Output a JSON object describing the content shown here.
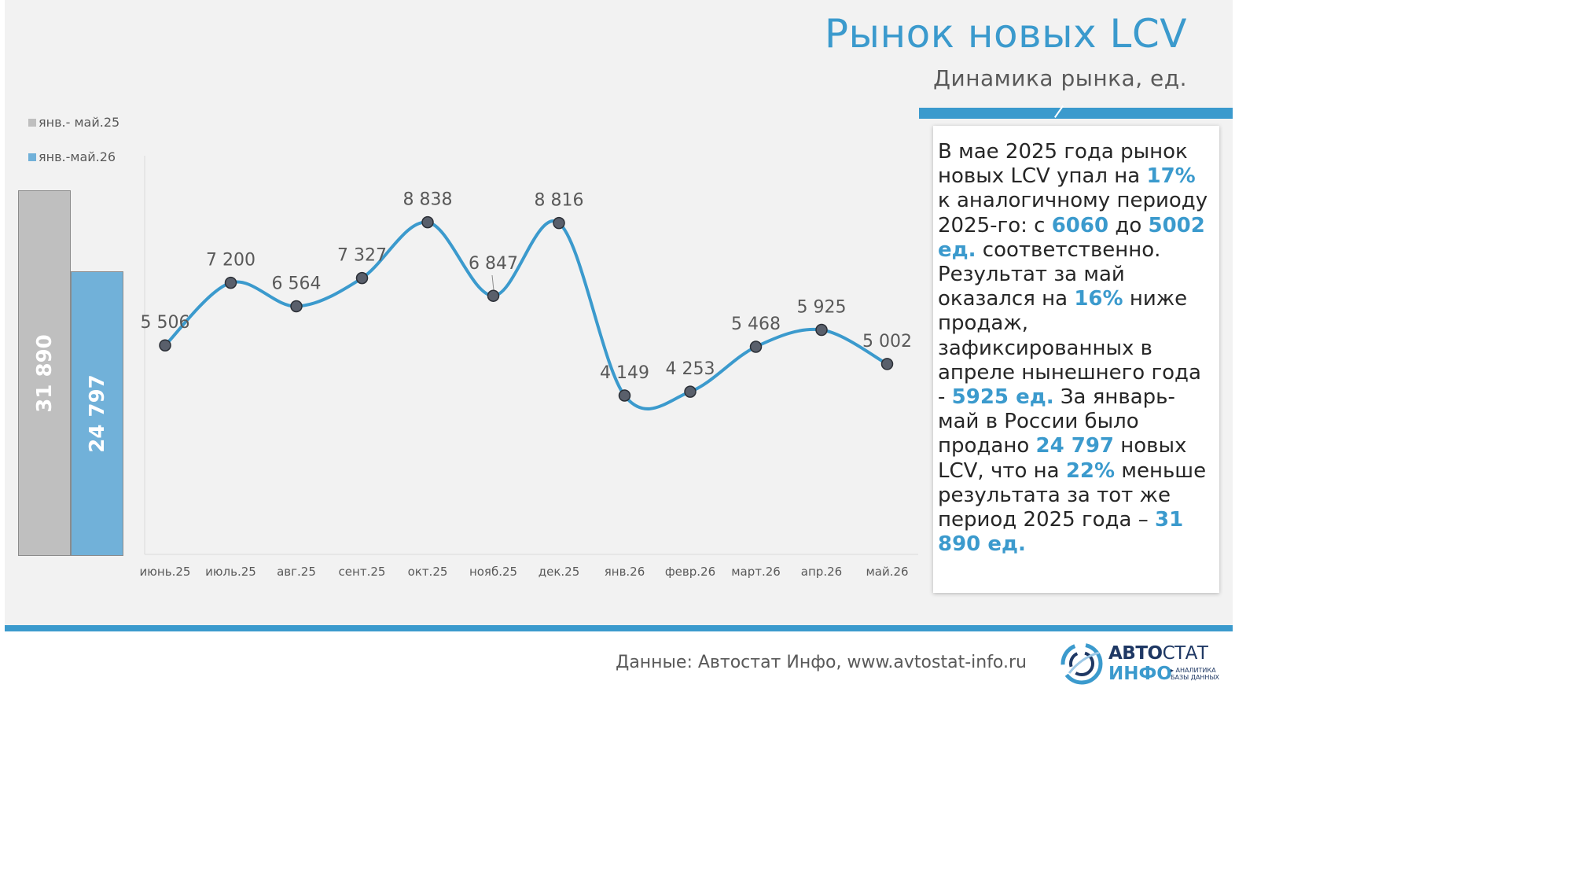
{
  "header": {
    "title": "Рынок новых LCV",
    "subtitle": "Динамика рынка, ед."
  },
  "legend": [
    {
      "label": "янв.- май.25",
      "color": "#bfbfbf"
    },
    {
      "label": "янв.-май.26",
      "color": "#71b1d9"
    }
  ],
  "summary_bars": [
    {
      "label": "31 890",
      "value": 31890,
      "color": "#bfbfbf"
    },
    {
      "label": "24 797",
      "value": 24797,
      "color": "#71b1d9"
    }
  ],
  "chart_data": {
    "type": "line",
    "categories": [
      "июнь.25",
      "июль.25",
      "авг.25",
      "сент.25",
      "окт.25",
      "нояб.25",
      "дек.25",
      "янв.26",
      "февр.26",
      "март.26",
      "апр.26",
      "май.26"
    ],
    "values": [
      5506,
      7200,
      6564,
      7327,
      8838,
      6847,
      8816,
      4149,
      4253,
      5468,
      5925,
      5002
    ],
    "data_labels": [
      "5 506",
      "7 200",
      "6 564",
      "7 327",
      "8 838",
      "6 847",
      "8 816",
      "4 149",
      "4 253",
      "5 468",
      "5 925",
      "5 002"
    ],
    "title": "",
    "xlabel": "",
    "ylabel": "",
    "grid": false,
    "line_color": "#3b9acd",
    "marker_color": "#595f6b"
  },
  "textbox": {
    "s1": "В мае 2025 года рынок новых LCV упал на ",
    "v1": "17%",
    "s2": " к аналогичному периоду 2025-го: с ",
    "v2": "6060",
    "s3": " до ",
    "v3": "5002 ед.",
    "s4": " соответственно. Результат за май оказался на ",
    "v4": "16%",
    "s5": " ниже продаж, зафиксированных в апреле нынешнего года - ",
    "v5": "5925 ед.",
    "s6": " За январь-май в России было продано ",
    "v6": "24 797",
    "s7": " новых LCV, что на ",
    "v7": "22%",
    "s8": " меньше результата за тот же период 2025 года – ",
    "v8": "31 890 ед."
  },
  "footer": {
    "source": "Данные: Автостат Инфо, www.avtostat-info.ru",
    "logo_a": "АВТО",
    "logo_b": "СТАТ",
    "logo_c": "ИНФО",
    "logo_tag1": "▸ АНАЛИТИКА",
    "logo_tag2": "БАЗЫ ДАННЫХ"
  },
  "colors": {
    "accent": "#3b9acd",
    "gray_bar": "#bfbfbf",
    "blue_bar": "#71b1d9"
  }
}
